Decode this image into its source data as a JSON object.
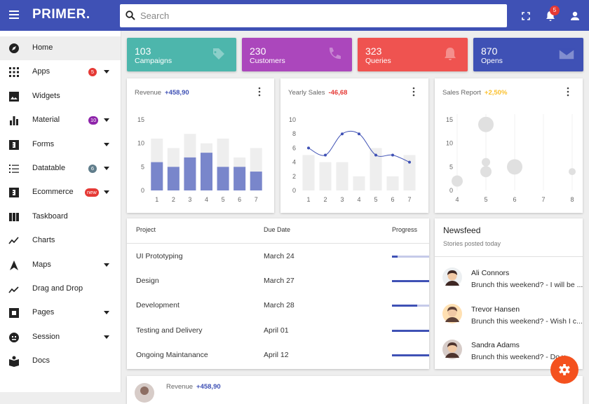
{
  "header": {
    "logo": "PRIMER.",
    "search_placeholder": "Search",
    "notifications": "5"
  },
  "nav": [
    {
      "label": "Home"
    },
    {
      "label": "Apps",
      "badge": "5",
      "badge_color": "#e53935",
      "expandable": true
    },
    {
      "label": "Widgets"
    },
    {
      "label": "Material",
      "badge": "10",
      "badge_color": "#8e24aa",
      "expandable": true
    },
    {
      "label": "Forms",
      "expandable": true
    },
    {
      "label": "Datatable",
      "badge": "6",
      "badge_color": "#607d8b",
      "expandable": true
    },
    {
      "label": "Ecommerce",
      "badge": "new",
      "badge_color": "#e53935",
      "expandable": true
    },
    {
      "label": "Taskboard"
    },
    {
      "label": "Charts"
    },
    {
      "label": "Maps",
      "expandable": true
    },
    {
      "label": "Drag and Drop"
    },
    {
      "label": "Pages",
      "expandable": true
    },
    {
      "label": "Session",
      "expandable": true
    },
    {
      "label": "Docs"
    }
  ],
  "stats": [
    {
      "value": 103,
      "label": "Campaigns",
      "color": "#4db6ac"
    },
    {
      "value": 230,
      "label": "Customers",
      "color": "#ab47bc"
    },
    {
      "value": 323,
      "label": "Queries",
      "color": "#ef5350"
    },
    {
      "value": 870,
      "label": "Opens",
      "color": "#3f51b5"
    }
  ],
  "chart_data": [
    {
      "type": "bar",
      "title": "Revenue",
      "change": "+458,90",
      "change_color": "#3f51b5",
      "categories": [
        "1",
        "2",
        "3",
        "4",
        "5",
        "6",
        "7"
      ],
      "series": [
        {
          "color": "#eeeeee",
          "values": [
            11,
            9,
            12,
            10,
            11,
            7,
            9
          ]
        },
        {
          "color": "#7986cb",
          "values": [
            6,
            5,
            7,
            8,
            5,
            5,
            4
          ]
        }
      ],
      "ylim": [
        0,
        15
      ],
      "yticks": [
        0,
        5,
        10,
        15
      ]
    },
    {
      "type": "combo",
      "title": "Yearly Sales",
      "change": "-46,68",
      "change_color": "#e53935",
      "categories": [
        "1",
        "2",
        "3",
        "4",
        "5",
        "6",
        "7"
      ],
      "series": [
        {
          "type": "bar",
          "color": "#eeeeee",
          "values": [
            5,
            4,
            4,
            2,
            6,
            2,
            5
          ]
        },
        {
          "type": "line",
          "color": "#3f51b5",
          "values": [
            6,
            5,
            8,
            8,
            5,
            5,
            4
          ]
        }
      ],
      "ylim": [
        0,
        10
      ],
      "yticks": [
        0,
        2,
        4,
        6,
        8,
        10
      ]
    },
    {
      "type": "bubble",
      "title": "Sales Report",
      "change": "+2,50%",
      "change_color": "#fbc02d",
      "x": [
        4,
        5,
        5,
        5,
        6,
        8
      ],
      "series": [
        {
          "color": "#e0e0e0",
          "values": [
            2,
            14,
            6,
            4,
            5,
            4
          ],
          "sizes": [
            8,
            11,
            6,
            8,
            11,
            5
          ]
        }
      ],
      "xlim": [
        4,
        8
      ],
      "xticks": [
        4,
        5,
        6,
        7,
        8
      ],
      "ylim": [
        0,
        15
      ],
      "yticks": [
        0,
        5,
        10,
        15
      ],
      "grid": true
    }
  ],
  "projects": {
    "columns": [
      "Project",
      "Due Date",
      "Progress"
    ],
    "rows": [
      {
        "name": "UI Prototyping",
        "due": "March 24",
        "progress": 10
      },
      {
        "name": "Design",
        "due": "March 27",
        "progress": 100
      },
      {
        "name": "Development",
        "due": "March 28",
        "progress": 45
      },
      {
        "name": "Testing and Delivery",
        "due": "April 01",
        "progress": 100
      },
      {
        "name": "Ongoing Maintanance",
        "due": "April 12",
        "progress": 100
      }
    ]
  },
  "newsfeed": {
    "title": "Newsfeed",
    "subtitle": "Stories posted today",
    "items": [
      {
        "name": "Ali Connors",
        "text": "Brunch this weekend? - I will be ..."
      },
      {
        "name": "Trevor Hansen",
        "text": "Brunch this weekend? - Wish I c..."
      },
      {
        "name": "Sandra Adams",
        "text": "Brunch this weekend? - Do y..."
      }
    ]
  },
  "bottom_card": {
    "title": "Revenue",
    "change": "+458,90"
  }
}
